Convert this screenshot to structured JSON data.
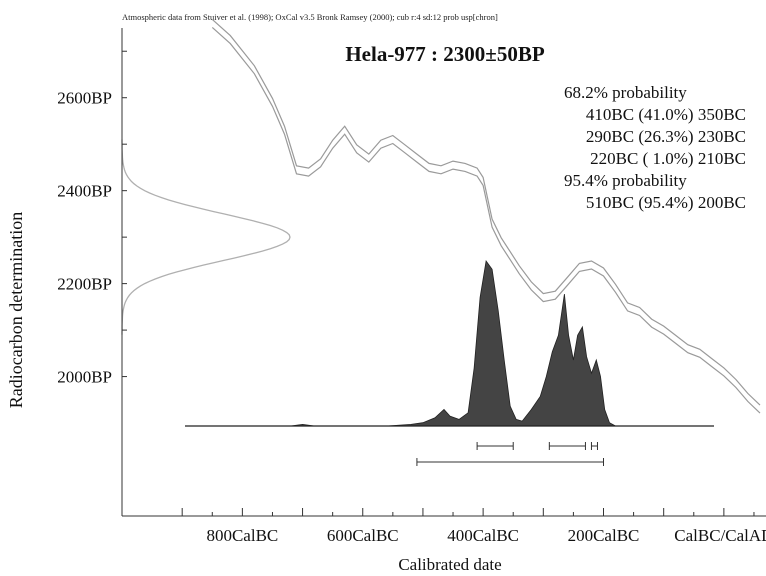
{
  "header_note": "Atmospheric data from Stuiver et al. (1998); OxCal v3.5 Bronk Ramsey (2000); cub r:4 sd:12 prob usp[chron]",
  "chart_data": {
    "type": "area",
    "title": "Hela-977 : 2300±50BP",
    "xlabel": "Calibrated date",
    "ylabel": "Radiocarbon determination",
    "x_tick_labels": [
      "800CalBC",
      "600CalBC",
      "400CalBC",
      "200CalBC",
      "CalBC/CalAD"
    ],
    "x_tick_values": [
      -800,
      -600,
      -400,
      -200,
      0
    ],
    "y_tick_labels": [
      "2600BP",
      "2400BP",
      "2200BP",
      "2000BP"
    ],
    "y_tick_values": [
      2600,
      2400,
      2200,
      2000
    ],
    "xlim": [
      -1000,
      70
    ],
    "ylim": [
      1700,
      2750
    ],
    "ranges": [
      {
        "label": "68.2% probability",
        "entries": [
          "410BC (41.0%) 350BC",
          "290BC (26.3%) 230BC",
          "220BC ( 1.0%) 210BC"
        ]
      },
      {
        "label": "95.4% probability",
        "entries": [
          "510BC (95.4%) 200BC"
        ]
      }
    ],
    "range_bars_68": [
      [
        -410,
        -350
      ],
      [
        -290,
        -230
      ],
      [
        -220,
        -210
      ]
    ],
    "range_bars_95": [
      [
        -510,
        -200
      ]
    ],
    "measurement": {
      "mean": 2300,
      "sd": 50
    },
    "calibration_curve": [
      [
        -850,
        2760
      ],
      [
        -820,
        2725
      ],
      [
        -780,
        2660
      ],
      [
        -750,
        2590
      ],
      [
        -730,
        2530
      ],
      [
        -710,
        2445
      ],
      [
        -690,
        2440
      ],
      [
        -670,
        2460
      ],
      [
        -650,
        2500
      ],
      [
        -630,
        2530
      ],
      [
        -610,
        2490
      ],
      [
        -590,
        2470
      ],
      [
        -570,
        2500
      ],
      [
        -550,
        2510
      ],
      [
        -530,
        2490
      ],
      [
        -510,
        2470
      ],
      [
        -490,
        2450
      ],
      [
        -470,
        2445
      ],
      [
        -450,
        2455
      ],
      [
        -430,
        2450
      ],
      [
        -410,
        2440
      ],
      [
        -400,
        2420
      ],
      [
        -385,
        2330
      ],
      [
        -370,
        2290
      ],
      [
        -355,
        2260
      ],
      [
        -340,
        2230
      ],
      [
        -320,
        2195
      ],
      [
        -300,
        2170
      ],
      [
        -280,
        2175
      ],
      [
        -260,
        2205
      ],
      [
        -240,
        2235
      ],
      [
        -220,
        2240
      ],
      [
        -200,
        2225
      ],
      [
        -180,
        2190
      ],
      [
        -160,
        2150
      ],
      [
        -140,
        2140
      ],
      [
        -120,
        2115
      ],
      [
        -100,
        2100
      ],
      [
        -80,
        2080
      ],
      [
        -60,
        2060
      ],
      [
        -40,
        2050
      ],
      [
        -20,
        2030
      ],
      [
        0,
        2010
      ],
      [
        20,
        1985
      ],
      [
        40,
        1955
      ],
      [
        60,
        1930
      ]
    ],
    "probability_distribution": [
      [
        -720,
        0.0
      ],
      [
        -700,
        0.01
      ],
      [
        -680,
        0.0
      ],
      [
        -640,
        0.0
      ],
      [
        -560,
        0.0
      ],
      [
        -520,
        0.01
      ],
      [
        -500,
        0.02
      ],
      [
        -480,
        0.05
      ],
      [
        -465,
        0.1
      ],
      [
        -455,
        0.06
      ],
      [
        -440,
        0.04
      ],
      [
        -425,
        0.08
      ],
      [
        -415,
        0.35
      ],
      [
        -405,
        0.78
      ],
      [
        -395,
        1.0
      ],
      [
        -385,
        0.95
      ],
      [
        -375,
        0.7
      ],
      [
        -365,
        0.4
      ],
      [
        -355,
        0.12
      ],
      [
        -345,
        0.04
      ],
      [
        -335,
        0.03
      ],
      [
        -320,
        0.1
      ],
      [
        -305,
        0.18
      ],
      [
        -295,
        0.3
      ],
      [
        -285,
        0.45
      ],
      [
        -275,
        0.55
      ],
      [
        -265,
        0.8
      ],
      [
        -258,
        0.55
      ],
      [
        -250,
        0.4
      ],
      [
        -243,
        0.55
      ],
      [
        -235,
        0.6
      ],
      [
        -228,
        0.42
      ],
      [
        -220,
        0.32
      ],
      [
        -212,
        0.4
      ],
      [
        -205,
        0.3
      ],
      [
        -198,
        0.1
      ],
      [
        -190,
        0.02
      ],
      [
        -180,
        0.0
      ],
      [
        -160,
        0.0
      ],
      [
        -60,
        0.0
      ]
    ]
  }
}
